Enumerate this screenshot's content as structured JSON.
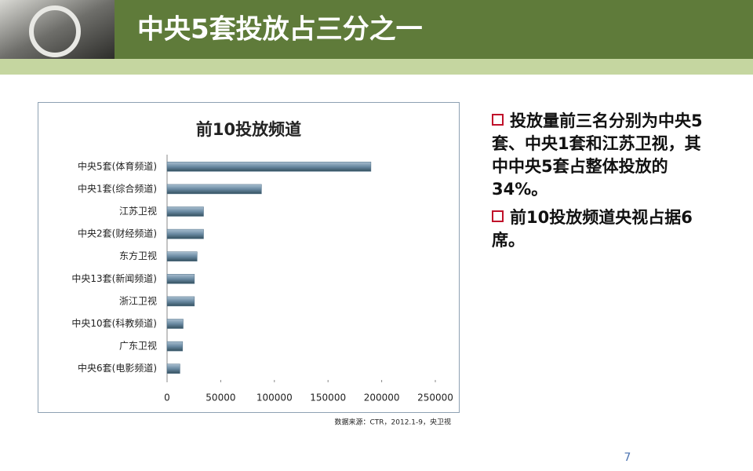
{
  "slide": {
    "title": "中央5套投放占三分之一",
    "bullets": [
      "投放量前三名分别为中央5套、中央1套和江苏卫视，其中中央5套占整体投放的34%。",
      "前10投放频道央视占据6席。"
    ],
    "source": "数据来源：CTR，2012.1-9，央卫视",
    "page_number": "7"
  },
  "chart_data": {
    "type": "hbar",
    "title": "前10投放频道",
    "categories": [
      "中央5套(体育频道)",
      "中央1套(综合频道)",
      "江苏卫视",
      "中央2套(财经频道)",
      "东方卫视",
      "中央13套(新闻频道)",
      "浙江卫视",
      "中央10套(科教频道)",
      "广东卫视",
      "中央6套(电影频道)"
    ],
    "values": [
      190000,
      88000,
      34000,
      34000,
      28000,
      25500,
      25500,
      15000,
      14500,
      12000
    ],
    "color": "#4f6f86",
    "xlim": [
      0,
      250000
    ],
    "xticks": [
      0,
      50000,
      100000,
      150000,
      200000,
      250000
    ],
    "grid": false
  }
}
